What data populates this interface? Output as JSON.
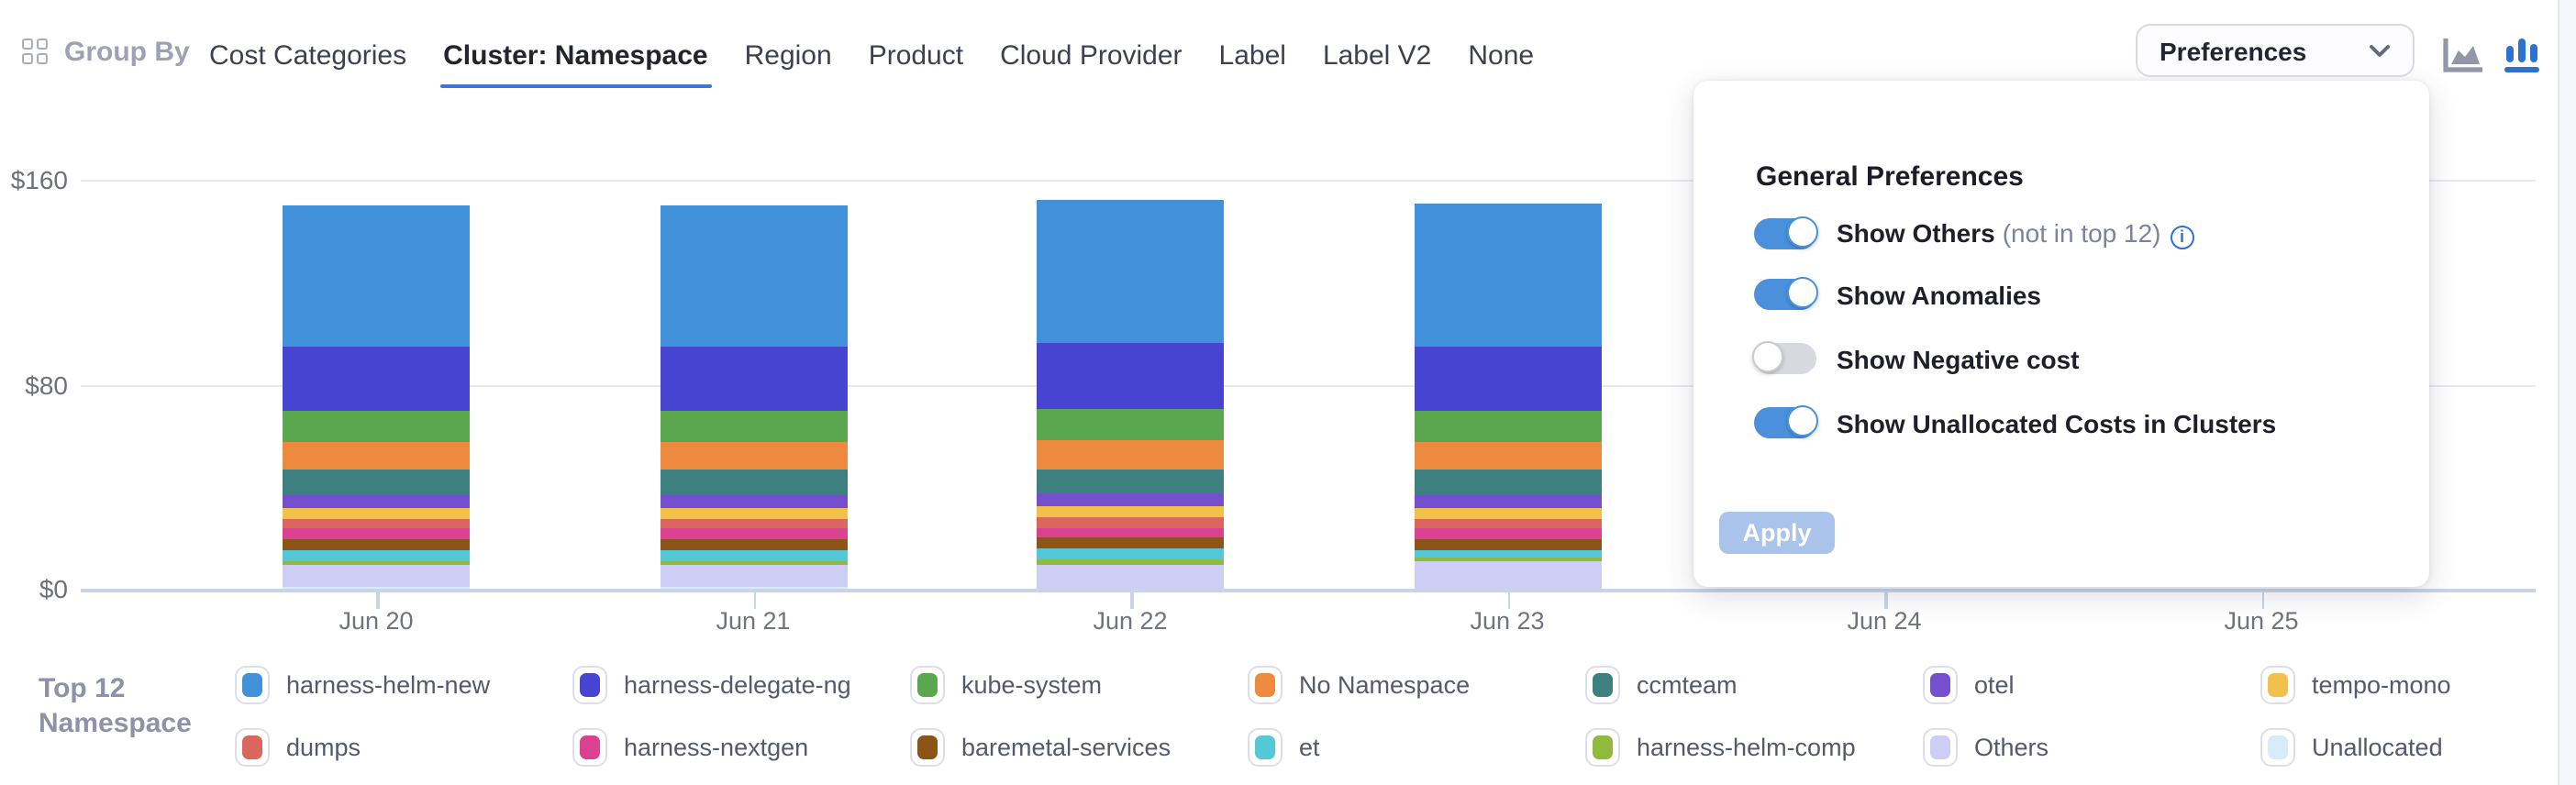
{
  "header": {
    "group_by_label": "Group By",
    "tabs": [
      {
        "label": "Cost Categories",
        "selected": false
      },
      {
        "label": "Cluster: Namespace",
        "selected": true
      },
      {
        "label": "Region",
        "selected": false
      },
      {
        "label": "Product",
        "selected": false
      },
      {
        "label": "Cloud Provider",
        "selected": false
      },
      {
        "label": "Label",
        "selected": false
      },
      {
        "label": "Label V2",
        "selected": false
      },
      {
        "label": "None",
        "selected": false
      }
    ],
    "preferences_label": "Preferences",
    "chart_type_icons": [
      {
        "name": "area-chart-icon",
        "active": false,
        "color": "#9395A9"
      },
      {
        "name": "bar-chart-icon",
        "active": true,
        "color": "#2D72D2"
      }
    ]
  },
  "preferences_panel": {
    "title": "General Preferences",
    "toggles": [
      {
        "label": "Show Others",
        "suffix": "(not in top 12)",
        "has_info_icon": true,
        "on": true
      },
      {
        "label": "Show Anomalies",
        "suffix": "",
        "has_info_icon": false,
        "on": true
      },
      {
        "label": "Show Negative cost",
        "suffix": "",
        "has_info_icon": false,
        "on": false
      },
      {
        "label": "Show Unallocated Costs in Clusters",
        "suffix": "",
        "has_info_icon": false,
        "on": true
      }
    ],
    "apply_label": "Apply"
  },
  "chart_data": {
    "type": "bar",
    "stacked": true,
    "x": [
      "Jun 20",
      "Jun 21",
      "Jun 22",
      "Jun 23",
      "Jun 24",
      "Jun 25"
    ],
    "y_ticks": [
      {
        "label": "$160",
        "value": 160
      },
      {
        "label": "$80",
        "value": 80
      },
      {
        "label": "$0",
        "value": 0
      }
    ],
    "ylim": [
      0,
      160
    ],
    "unit": "$",
    "grid": "horizontal",
    "legend_position": "bottom",
    "occluded_x": [
      "Jun 24",
      "Jun 25"
    ],
    "series": [
      {
        "name": "harness-helm-new",
        "color": "#4291DB",
        "values": [
          55,
          55,
          56,
          55.5,
          null,
          null
        ]
      },
      {
        "name": "harness-delegate-ng",
        "color": "#4744D1",
        "values": [
          25,
          25,
          25.5,
          25,
          null,
          null
        ]
      },
      {
        "name": "kube-system",
        "color": "#5BA750",
        "values": [
          12.5,
          12.5,
          12.5,
          12.5,
          null,
          null
        ]
      },
      {
        "name": "No Namespace",
        "color": "#EE8A40",
        "values": [
          11,
          11,
          11,
          11,
          null,
          null
        ]
      },
      {
        "name": "ccmteam",
        "color": "#3E7F7F",
        "values": [
          9.5,
          9.5,
          9.5,
          9.5,
          null,
          null
        ]
      },
      {
        "name": "otel",
        "color": "#7450CF",
        "values": [
          5.5,
          5.5,
          5.5,
          5.5,
          null,
          null
        ]
      },
      {
        "name": "tempo-mono",
        "color": "#F2C14B",
        "values": [
          4,
          4,
          4,
          4,
          null,
          null
        ]
      },
      {
        "name": "dumps",
        "color": "#D9675E",
        "values": [
          4,
          4,
          4,
          4,
          null,
          null
        ]
      },
      {
        "name": "harness-nextgen",
        "color": "#DA4190",
        "values": [
          4,
          4,
          4,
          4,
          null,
          null
        ]
      },
      {
        "name": "baremetal-services",
        "color": "#8D5418",
        "values": [
          4.5,
          4.5,
          4.5,
          4.5,
          null,
          null
        ]
      },
      {
        "name": "et",
        "color": "#55C8D8",
        "values": [
          4,
          4,
          4,
          2.5,
          null,
          null
        ]
      },
      {
        "name": "harness-helm-comp",
        "color": "#90BA3E",
        "values": [
          2,
          2,
          2,
          2,
          null,
          null
        ]
      },
      {
        "name": "Others",
        "color": "#CDCDF5",
        "values": [
          8,
          8,
          9.5,
          10.5,
          null,
          null
        ]
      },
      {
        "name": "Unallocated",
        "color": "#D6EDF9",
        "values": [
          1,
          1,
          0,
          0,
          null,
          null
        ]
      }
    ]
  },
  "legend": {
    "title_top": "Top 12",
    "title_bottom": "Namespace"
  },
  "colors": {
    "accent_blue": "#3A77D8",
    "toggle_on": "#4A90DC",
    "apply_disabled": "#A9C3EB",
    "gridline": "#E7E9F1",
    "axis": "#C9D4EA",
    "tab_text": "#3E4051",
    "muted_text": "#9FA0B5"
  }
}
